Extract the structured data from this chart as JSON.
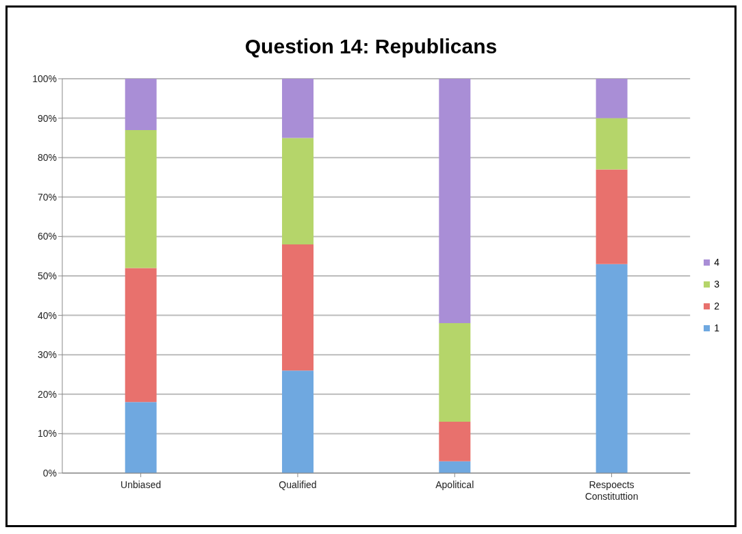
{
  "chart_data": {
    "type": "bar",
    "title": "Question 14: Republicans",
    "categories": [
      "Unbiased",
      "Qualified",
      "Apolitical",
      "Respoects Constituttion"
    ],
    "stacked": true,
    "series": [
      {
        "name": "1",
        "color": "#6fa8e0",
        "values": [
          18,
          26,
          3,
          53
        ]
      },
      {
        "name": "2",
        "color": "#e8716d",
        "values": [
          34,
          32,
          10,
          24
        ]
      },
      {
        "name": "3",
        "color": "#b5d56a",
        "values": [
          35,
          27,
          25,
          13
        ]
      },
      {
        "name": "4",
        "color": "#a98ed6",
        "values": [
          13,
          15,
          62,
          10
        ]
      }
    ],
    "ylim": [
      0,
      100
    ],
    "yticks": [
      {
        "value": 0,
        "label": "0%"
      },
      {
        "value": 10,
        "label": "10%"
      },
      {
        "value": 20,
        "label": "20%"
      },
      {
        "value": 30,
        "label": "30%"
      },
      {
        "value": 40,
        "label": "40%"
      },
      {
        "value": 50,
        "label": "50%"
      },
      {
        "value": 60,
        "label": "60%"
      },
      {
        "value": 70,
        "label": "70%"
      },
      {
        "value": 80,
        "label": "80%"
      },
      {
        "value": 90,
        "label": "90%"
      },
      {
        "value": 100,
        "label": "100%"
      }
    ],
    "grid": "y",
    "legend": "right"
  }
}
